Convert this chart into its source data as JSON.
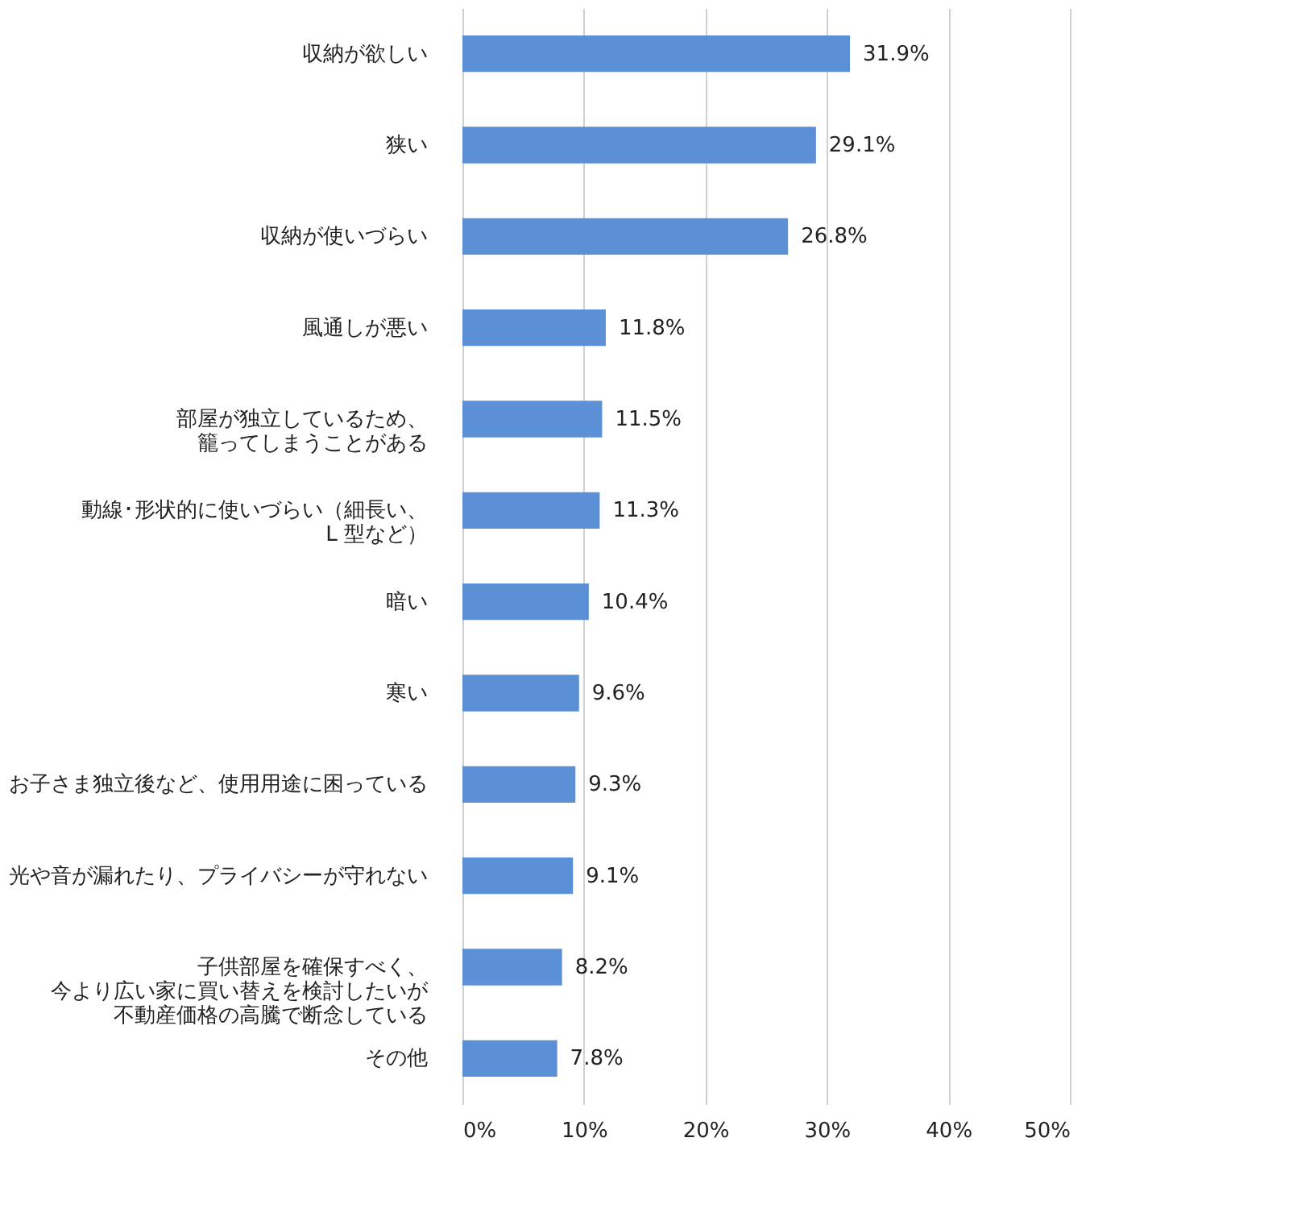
{
  "chart_data": {
    "type": "bar",
    "orientation": "horizontal",
    "categories": [
      "収納が欲しい",
      "狭い",
      "収納が使いづらい",
      "風通しが悪い",
      "部屋が独立しているため、籠ってしまうことがある",
      "動線･形状的に使いづらい（細長い、L 型など）",
      "暗い",
      "寒い",
      "お子さま独立後など、使用用途に困っている",
      "光や音が漏れたり、プライバシーが守れない",
      "子供部屋を確保すべく、今より広い家に買い替えを検討したいが不動産価格の高騰で断念している",
      "その他"
    ],
    "values": [
      31.9,
      29.1,
      26.8,
      11.8,
      11.5,
      11.3,
      10.4,
      9.6,
      9.3,
      9.1,
      8.2,
      7.8
    ],
    "value_labels": [
      "31.9%",
      "29.1%",
      "26.8%",
      "11.8%",
      "11.5%",
      "11.3%",
      "10.4%",
      "9.6%",
      "9.3%",
      "9.1%",
      "8.2%",
      "7.8%"
    ],
    "color": "#5b8fd6",
    "xlim": [
      0,
      50
    ],
    "xticks": [
      {
        "value": 0,
        "label": "0%"
      },
      {
        "value": 10,
        "label": "10%"
      },
      {
        "value": 20,
        "label": "20%"
      },
      {
        "value": 30,
        "label": "30%"
      },
      {
        "value": 40,
        "label": "40%"
      },
      {
        "value": 50,
        "label": "50%"
      }
    ],
    "grid": "x"
  }
}
